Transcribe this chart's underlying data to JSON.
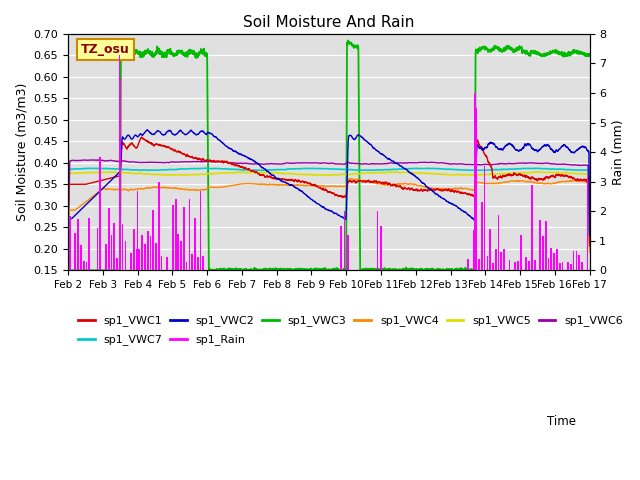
{
  "title": "Soil Moisture And Rain",
  "xlabel": "Time",
  "ylabel_left": "Soil Moisture (m3/m3)",
  "ylabel_right": "Rain (mm)",
  "xlim": [
    0,
    15
  ],
  "ylim_left": [
    0.15,
    0.7
  ],
  "ylim_right": [
    0.0,
    8.0
  ],
  "xtick_labels": [
    "Feb 2",
    "Feb 3",
    "Feb 4",
    "Feb 5",
    "Feb 6",
    "Feb 7",
    "Feb 8",
    "Feb 9",
    "Feb 10",
    "Feb 11",
    "Feb 12",
    "Feb 13",
    "Feb 14",
    "Feb 15",
    "Feb 16",
    "Feb 17"
  ],
  "colors": {
    "VWC1": "#dd0000",
    "VWC2": "#0000cc",
    "VWC3": "#00bb00",
    "VWC4": "#ff8800",
    "VWC5": "#dddd00",
    "VWC6": "#9900aa",
    "VWC7": "#00cccc",
    "Rain": "#ff00ff"
  },
  "background_color": "#e0e0e0",
  "label_box": "TZ_osu",
  "label_box_bg": "#ffff99",
  "label_box_border": "#cc8800"
}
